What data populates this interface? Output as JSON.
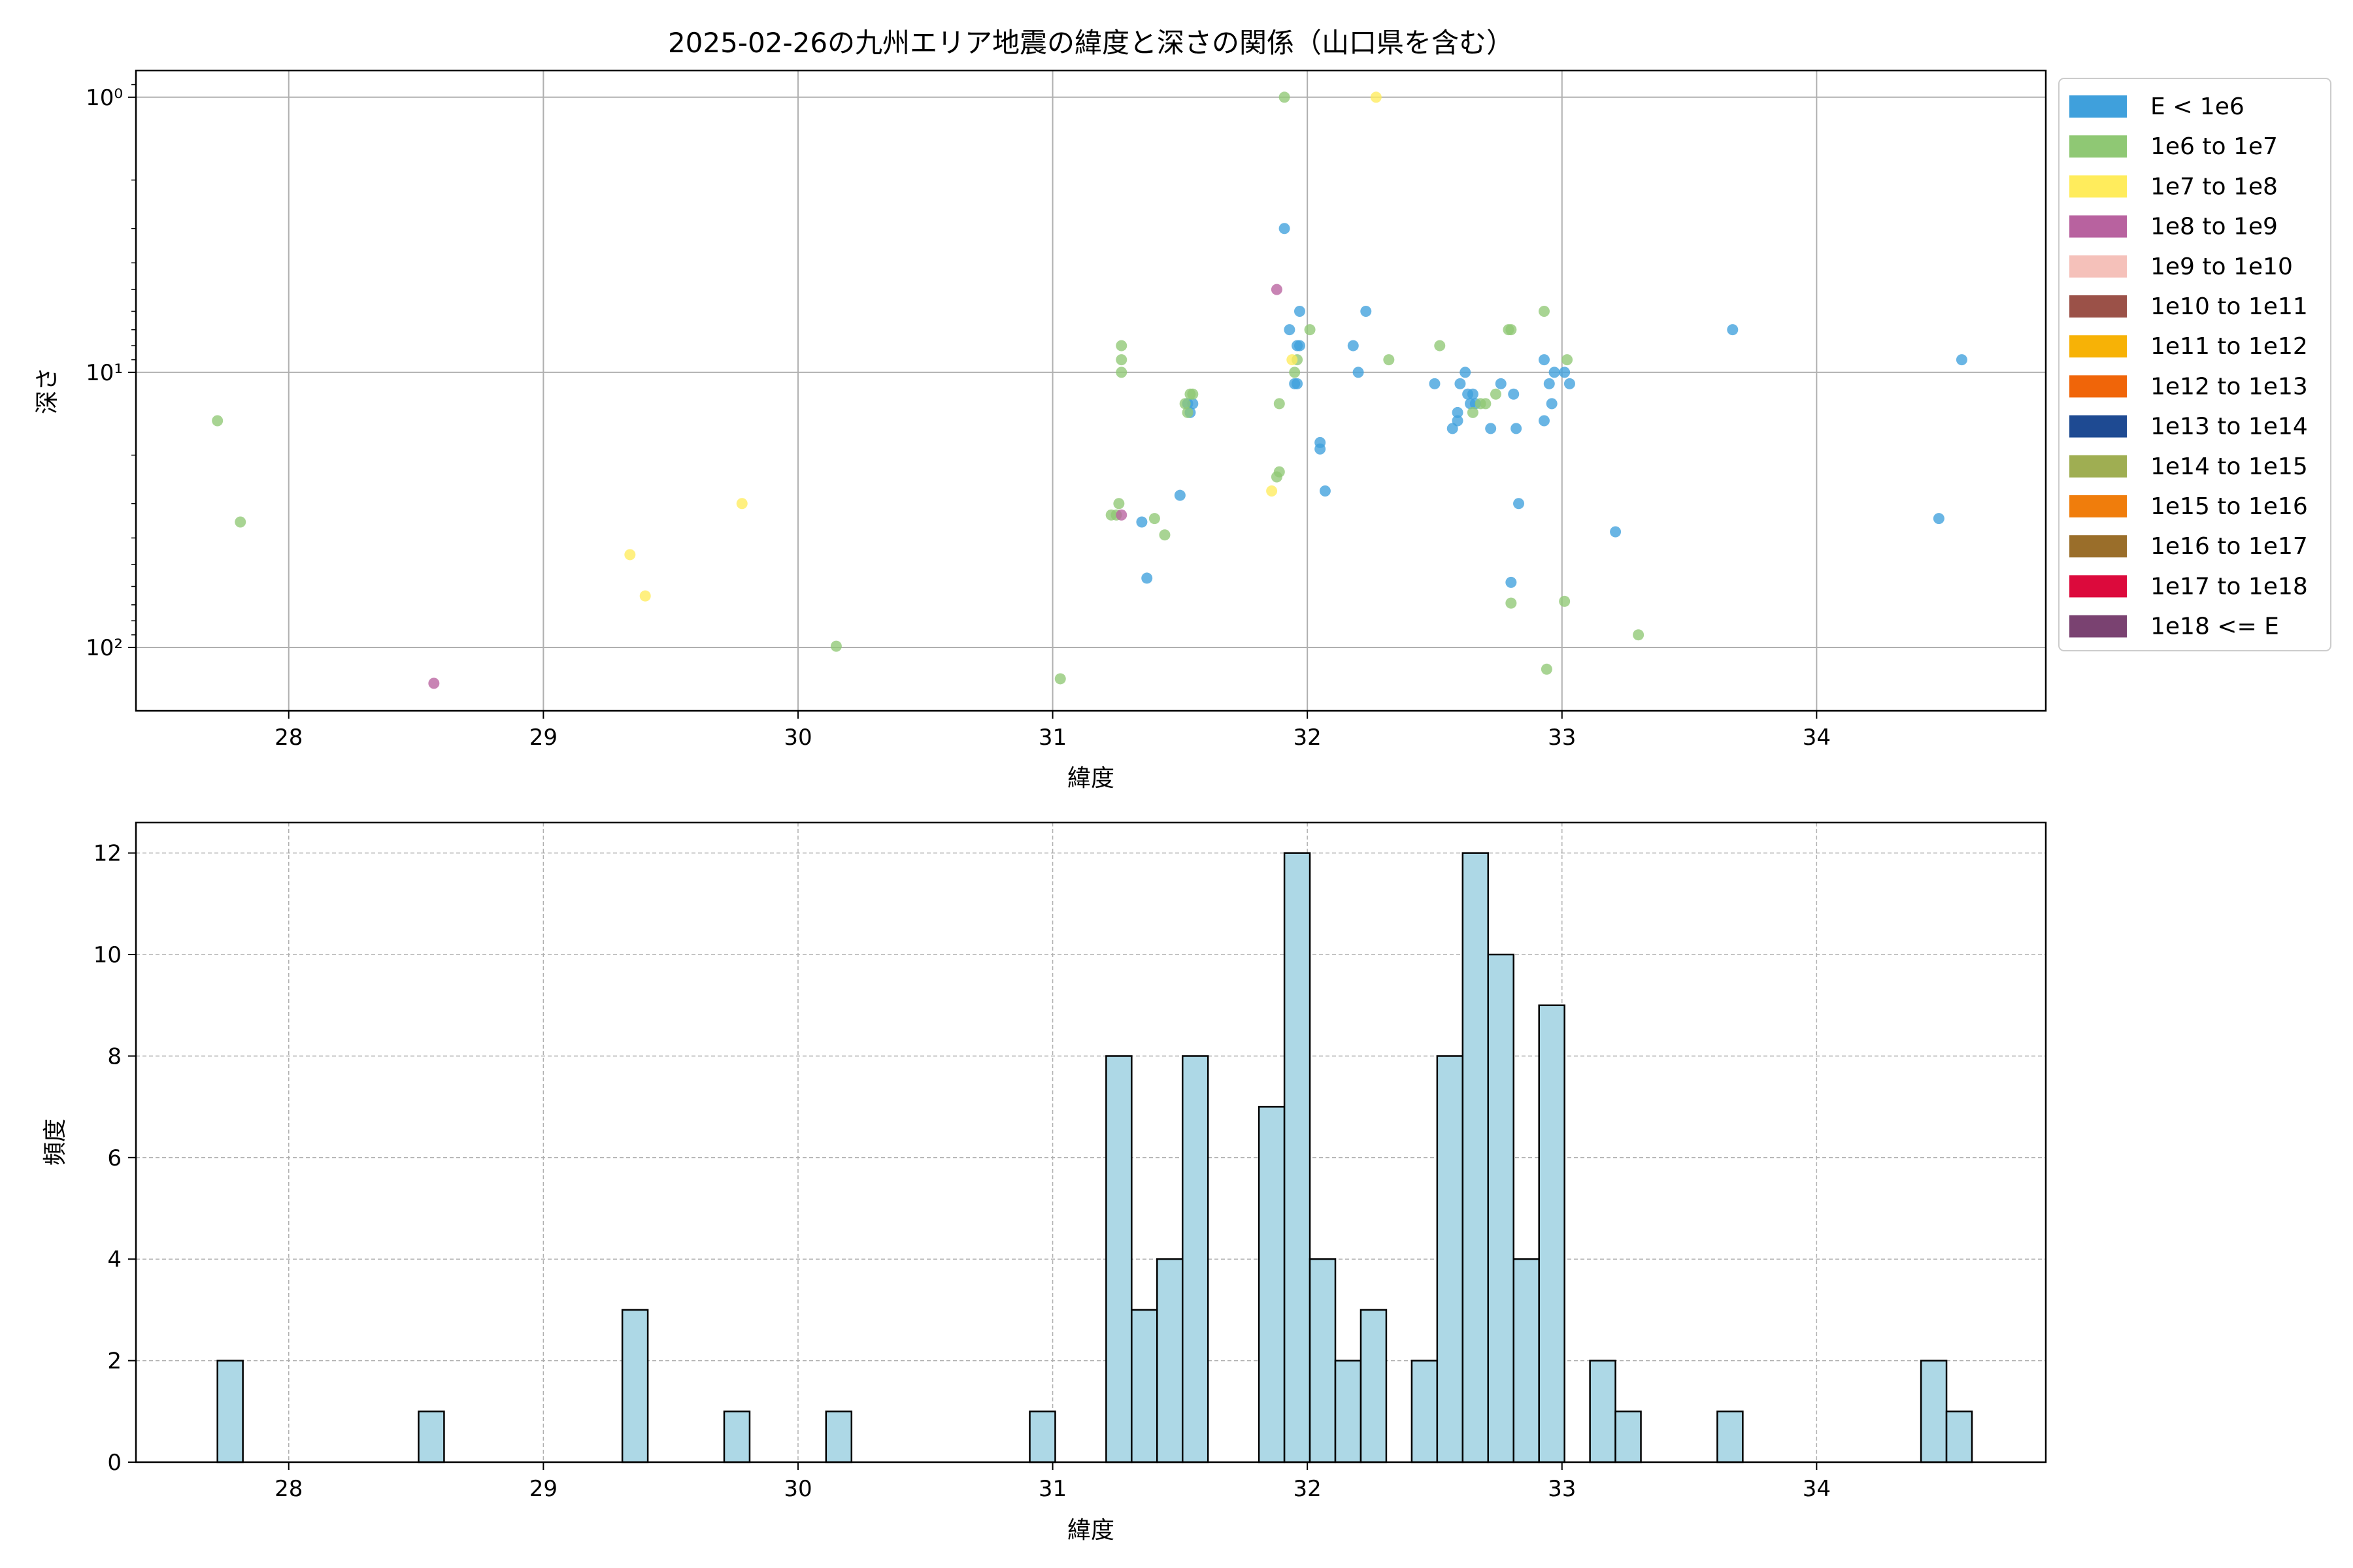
{
  "chart_data": [
    {
      "type": "scatter",
      "title": "2025-02-26の九州エリア地震の緯度と深さの関係（山口県を含む）",
      "xlabel": "緯度",
      "ylabel": "深さ",
      "xlim": [
        27.4,
        34.9
      ],
      "xticks": [
        28,
        29,
        30,
        31,
        32,
        33,
        34
      ],
      "yscale": "log",
      "yaxis_inverted": true,
      "ylim": [
        0.8,
        170
      ],
      "yticks": [
        {
          "value": 1,
          "label": "10⁰"
        },
        {
          "value": 10,
          "label": "10¹"
        },
        {
          "value": 100,
          "label": "10²"
        }
      ],
      "grid": true,
      "legend_position": "outside-right",
      "legend": [
        {
          "label": "E < 1e6",
          "color": "#3fa0dc"
        },
        {
          "label": "1e6 to 1e7",
          "color": "#8fc874"
        },
        {
          "label": "1e7 to 1e8",
          "color": "#ffec5c"
        },
        {
          "label": "1e8 to 1e9",
          "color": "#b8629f"
        },
        {
          "label": "1e9 to 1e10",
          "color": "#f5c1ba"
        },
        {
          "label": "1e10 to 1e11",
          "color": "#9b5148"
        },
        {
          "label": "1e11 to 1e12",
          "color": "#f7b206"
        },
        {
          "label": "1e12 to 1e13",
          "color": "#f06509"
        },
        {
          "label": "1e13 to 1e14",
          "color": "#1e4a92"
        },
        {
          "label": "1e14 to 1e15",
          "color": "#9fae52"
        },
        {
          "label": "1e15 to 1e16",
          "color": "#f07d0c"
        },
        {
          "label": "1e16 to 1e17",
          "color": "#9a6e2a"
        },
        {
          "label": "1e17 to 1e18",
          "color": "#dc0a3c"
        },
        {
          "label": "1e18 <= E",
          "color": "#7a4271"
        }
      ],
      "series": [
        {
          "name": "E < 1e6",
          "color": "#3fa0dc",
          "points": [
            [
              31.35,
              35
            ],
            [
              31.37,
              56
            ],
            [
              31.5,
              28
            ],
            [
              31.53,
              13
            ],
            [
              31.54,
              14
            ],
            [
              31.55,
              13
            ],
            [
              31.91,
              3
            ],
            [
              31.93,
              7
            ],
            [
              31.95,
              11
            ],
            [
              31.96,
              11
            ],
            [
              31.96,
              8
            ],
            [
              31.97,
              8
            ],
            [
              31.97,
              6
            ],
            [
              32.05,
              18
            ],
            [
              32.05,
              19
            ],
            [
              32.07,
              27
            ],
            [
              32.18,
              8
            ],
            [
              32.2,
              10
            ],
            [
              32.23,
              6
            ],
            [
              32.5,
              11
            ],
            [
              32.57,
              16
            ],
            [
              32.59,
              15
            ],
            [
              32.59,
              14
            ],
            [
              32.6,
              11
            ],
            [
              32.62,
              10
            ],
            [
              32.63,
              12
            ],
            [
              32.64,
              13
            ],
            [
              32.65,
              12
            ],
            [
              32.66,
              13
            ],
            [
              32.72,
              16
            ],
            [
              32.76,
              11
            ],
            [
              32.8,
              58
            ],
            [
              32.81,
              12
            ],
            [
              32.82,
              16
            ],
            [
              32.83,
              30
            ],
            [
              32.93,
              9
            ],
            [
              32.93,
              15
            ],
            [
              32.95,
              11
            ],
            [
              32.96,
              13
            ],
            [
              32.97,
              10
            ],
            [
              33.01,
              10
            ],
            [
              33.03,
              11
            ],
            [
              33.21,
              38
            ],
            [
              33.67,
              7
            ],
            [
              34.48,
              34
            ],
            [
              34.57,
              9
            ]
          ]
        },
        {
          "name": "1e6 to 1e7",
          "color": "#8fc874",
          "points": [
            [
              27.72,
              15
            ],
            [
              27.81,
              35
            ],
            [
              30.15,
              99
            ],
            [
              31.03,
              130
            ],
            [
              31.23,
              33
            ],
            [
              31.25,
              33
            ],
            [
              31.26,
              30
            ],
            [
              31.27,
              8
            ],
            [
              31.27,
              9
            ],
            [
              31.27,
              10
            ],
            [
              31.4,
              34
            ],
            [
              31.44,
              39
            ],
            [
              31.52,
              13
            ],
            [
              31.53,
              14
            ],
            [
              31.54,
              12
            ],
            [
              31.55,
              12
            ],
            [
              31.88,
              24
            ],
            [
              31.89,
              23
            ],
            [
              31.89,
              13
            ],
            [
              31.91,
              1
            ],
            [
              31.95,
              10
            ],
            [
              31.96,
              9
            ],
            [
              32.01,
              7
            ],
            [
              32.32,
              9
            ],
            [
              32.52,
              8
            ],
            [
              32.65,
              14
            ],
            [
              32.68,
              13
            ],
            [
              32.7,
              13
            ],
            [
              32.74,
              12
            ],
            [
              32.79,
              7
            ],
            [
              32.8,
              7
            ],
            [
              32.8,
              69
            ],
            [
              32.93,
              6
            ],
            [
              32.94,
              120
            ],
            [
              33.01,
              68
            ],
            [
              33.02,
              9
            ],
            [
              33.3,
              90
            ]
          ]
        },
        {
          "name": "1e7 to 1e8",
          "color": "#ffec5c",
          "points": [
            [
              29.34,
              46
            ],
            [
              29.4,
              65
            ],
            [
              29.78,
              30
            ],
            [
              31.86,
              27
            ],
            [
              31.94,
              9
            ],
            [
              32.27,
              1
            ]
          ]
        },
        {
          "name": "1e8 to 1e9",
          "color": "#b8629f",
          "points": [
            [
              28.57,
              135
            ],
            [
              31.27,
              33
            ],
            [
              31.88,
              5
            ]
          ]
        }
      ]
    },
    {
      "type": "bar",
      "subtype": "histogram",
      "xlabel": "緯度",
      "ylabel": "頻度",
      "xlim": [
        27.4,
        34.9
      ],
      "xticks": [
        28,
        29,
        30,
        31,
        32,
        33,
        34
      ],
      "ylim": [
        0,
        12.6
      ],
      "yticks": [
        0,
        2,
        4,
        6,
        8,
        10,
        12
      ],
      "grid": true,
      "bar_color": "#add8e6",
      "edge_color": "#000000",
      "bins": [
        {
          "start": 27.72,
          "end": 27.82,
          "count": 2
        },
        {
          "start": 28.51,
          "end": 28.61,
          "count": 1
        },
        {
          "start": 29.31,
          "end": 29.41,
          "count": 3
        },
        {
          "start": 29.71,
          "end": 29.81,
          "count": 1
        },
        {
          "start": 30.11,
          "end": 30.21,
          "count": 1
        },
        {
          "start": 30.91,
          "end": 31.01,
          "count": 1
        },
        {
          "start": 31.21,
          "end": 31.31,
          "count": 8
        },
        {
          "start": 31.31,
          "end": 31.41,
          "count": 3
        },
        {
          "start": 31.41,
          "end": 31.51,
          "count": 4
        },
        {
          "start": 31.51,
          "end": 31.61,
          "count": 8
        },
        {
          "start": 31.81,
          "end": 31.91,
          "count": 7
        },
        {
          "start": 31.91,
          "end": 32.01,
          "count": 12
        },
        {
          "start": 32.01,
          "end": 32.11,
          "count": 4
        },
        {
          "start": 32.11,
          "end": 32.21,
          "count": 2
        },
        {
          "start": 32.21,
          "end": 32.31,
          "count": 3
        },
        {
          "start": 32.41,
          "end": 32.51,
          "count": 2
        },
        {
          "start": 32.51,
          "end": 32.61,
          "count": 8
        },
        {
          "start": 32.61,
          "end": 32.71,
          "count": 12
        },
        {
          "start": 32.71,
          "end": 32.81,
          "count": 10
        },
        {
          "start": 32.81,
          "end": 32.91,
          "count": 4
        },
        {
          "start": 32.91,
          "end": 33.01,
          "count": 9
        },
        {
          "start": 33.11,
          "end": 33.21,
          "count": 2
        },
        {
          "start": 33.21,
          "end": 33.31,
          "count": 1
        },
        {
          "start": 33.61,
          "end": 33.71,
          "count": 1
        },
        {
          "start": 34.41,
          "end": 34.51,
          "count": 2
        },
        {
          "start": 34.51,
          "end": 34.61,
          "count": 1
        }
      ]
    }
  ]
}
